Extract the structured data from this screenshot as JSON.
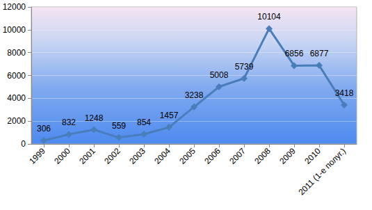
{
  "chart_data": {
    "type": "line",
    "categories": [
      "1999",
      "2000",
      "2001",
      "2002",
      "2003",
      "2004",
      "2005",
      "2006",
      "2007",
      "2008",
      "2009",
      "2010",
      "2011 (1-е полуг.)"
    ],
    "values": [
      306,
      832,
      1248,
      559,
      854,
      1457,
      3238,
      5008,
      5739,
      10104,
      6856,
      6877,
      3418
    ],
    "color": "#4a7ebb",
    "marker": "diamond",
    "ylim": [
      0,
      12000
    ],
    "yticks": [
      0,
      2000,
      4000,
      6000,
      8000,
      10000,
      12000
    ],
    "grid": true,
    "data_labels": true
  }
}
